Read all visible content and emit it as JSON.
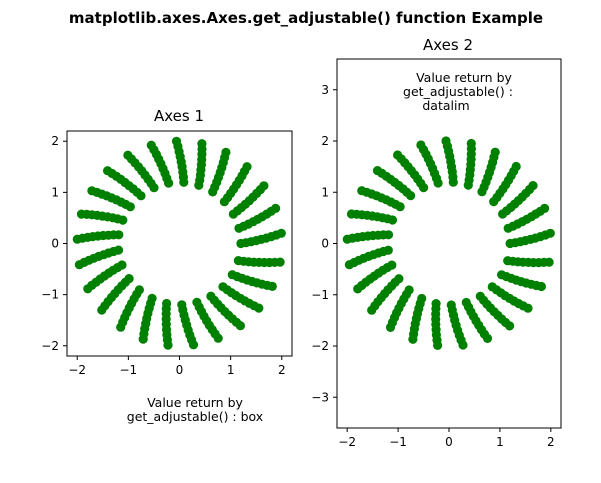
{
  "chart_data": {
    "figure_title": "matplotlib.axes.Axes.get_adjustable() function Example",
    "marker_color": "#008000",
    "series_rule": "x = r*cos(theta), y = r*sin(theta) for every r in radii and theta in angles",
    "radii": [
      1.2,
      1.3,
      1.4,
      1.5,
      1.6,
      1.7,
      1.8,
      1.9,
      2.0
    ],
    "angles": [
      0.0,
      0.25,
      0.5,
      0.75,
      1.0,
      1.25,
      1.5,
      1.75,
      2.0,
      2.25,
      2.5,
      2.75,
      3.0,
      3.25,
      3.5,
      3.75,
      4.0,
      4.25,
      4.5,
      4.75,
      5.0,
      5.25,
      5.5,
      5.75,
      6.0
    ],
    "radial_twist": 0.1,
    "charts": [
      {
        "type": "scatter",
        "title": "Axes 1",
        "xlim": [
          -2.2,
          2.2
        ],
        "ylim": [
          -2.2,
          2.2
        ],
        "xticks": [
          -2,
          -1,
          0,
          1,
          2
        ],
        "yticks": [
          -2,
          -1,
          0,
          1,
          2
        ],
        "xtick_labels": [
          "−2",
          "−1",
          "0",
          "1",
          "2"
        ],
        "ytick_labels": [
          "−2",
          "−1",
          "0",
          "1",
          "2"
        ],
        "annotation_lines": [
          "Value return by",
          "get_adjustable() : box"
        ]
      },
      {
        "type": "scatter",
        "title": "Axes 2",
        "xlim": [
          -2.2,
          2.2
        ],
        "ylim": [
          -3.6,
          3.6
        ],
        "xticks": [
          -2,
          -1,
          0,
          1,
          2
        ],
        "yticks": [
          -3,
          -2,
          -1,
          0,
          1,
          2,
          3
        ],
        "xtick_labels": [
          "−2",
          "−1",
          "0",
          "1",
          "2"
        ],
        "ytick_labels": [
          "−3",
          "−2",
          "−1",
          "0",
          "1",
          "2",
          "3"
        ],
        "annotation_lines": [
          "Value return by",
          "get_adjustable() :",
          "datalim"
        ]
      }
    ]
  }
}
